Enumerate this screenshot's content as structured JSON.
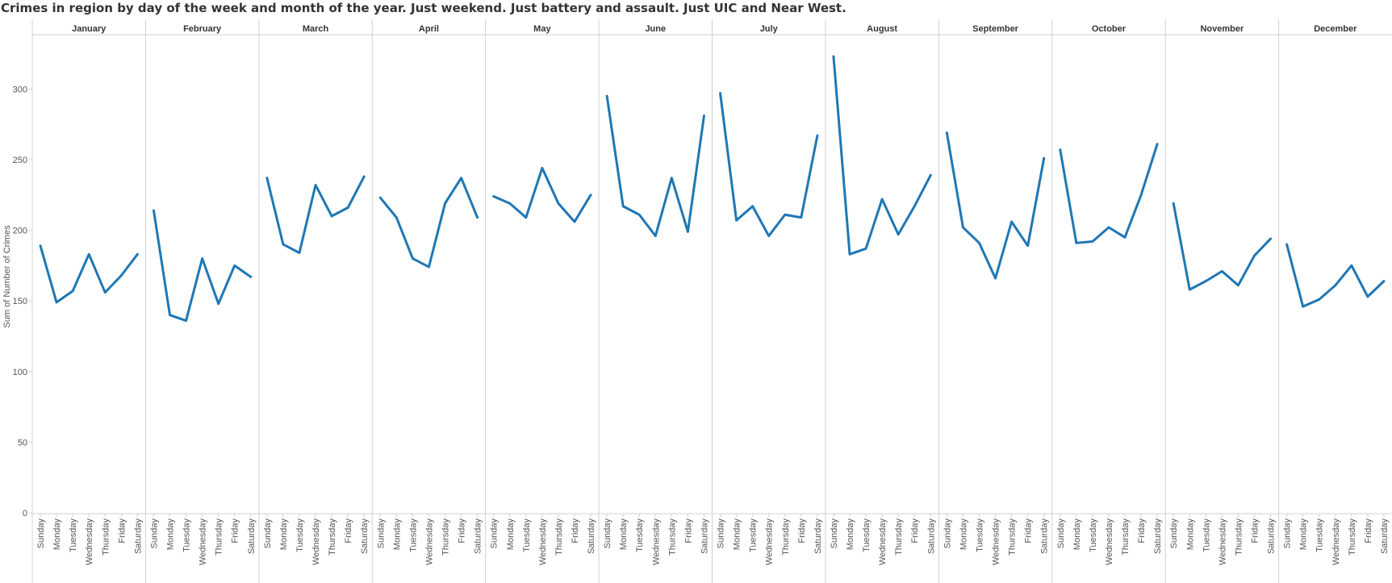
{
  "title": "Crimes in region by day of the week and month of the year.  Just weekend. Just battery and assault.   Just UIC and Near West.",
  "colors": {
    "line": "#1f77b4",
    "grid": "#d0d0d0",
    "text": "#555555",
    "header_text": "#333333"
  },
  "chart_data": {
    "type": "line",
    "ylabel": "Sum of Number of Crimes",
    "ylim": [
      0,
      340
    ],
    "yticks": [
      0,
      50,
      100,
      150,
      200,
      250,
      300
    ],
    "days": [
      "Sunday",
      "Monday",
      "Tuesday",
      "Wednesday",
      "Thursday",
      "Friday",
      "Saturday"
    ],
    "months": [
      "January",
      "February",
      "March",
      "April",
      "May",
      "June",
      "July",
      "August",
      "September",
      "October",
      "November",
      "December"
    ],
    "series": [
      {
        "month": "January",
        "values": [
          189,
          149,
          157,
          183,
          156,
          168,
          183
        ]
      },
      {
        "month": "February",
        "values": [
          214,
          140,
          136,
          180,
          148,
          175,
          167
        ]
      },
      {
        "month": "March",
        "values": [
          237,
          190,
          184,
          232,
          210,
          216,
          238
        ]
      },
      {
        "month": "April",
        "values": [
          223,
          209,
          180,
          174,
          219,
          237,
          209
        ]
      },
      {
        "month": "May",
        "values": [
          224,
          219,
          209,
          244,
          219,
          206,
          225
        ]
      },
      {
        "month": "June",
        "values": [
          295,
          217,
          211,
          196,
          237,
          199,
          281
        ]
      },
      {
        "month": "July",
        "values": [
          297,
          207,
          217,
          196,
          211,
          209,
          267
        ]
      },
      {
        "month": "August",
        "values": [
          323,
          183,
          187,
          222,
          197,
          217,
          239
        ]
      },
      {
        "month": "September",
        "values": [
          269,
          202,
          191,
          166,
          206,
          189,
          251
        ]
      },
      {
        "month": "October",
        "values": [
          257,
          191,
          192,
          202,
          195,
          225,
          261
        ]
      },
      {
        "month": "November",
        "values": [
          219,
          158,
          164,
          171,
          161,
          182,
          194
        ]
      },
      {
        "month": "December",
        "values": [
          190,
          146,
          151,
          161,
          175,
          153,
          164
        ]
      }
    ]
  }
}
